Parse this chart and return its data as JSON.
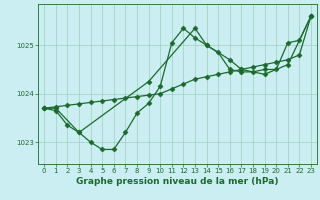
{
  "bg_color": "#cbeef3",
  "plot_bg_color": "#cbeef3",
  "grid_color": "#9ecfb8",
  "line_color": "#1a6b2a",
  "xlabel": "Graphe pression niveau de la mer (hPa)",
  "xlim": [
    -0.5,
    23.5
  ],
  "ylim": [
    1022.55,
    1025.85
  ],
  "yticks": [
    1023,
    1024,
    1025
  ],
  "xticks": [
    0,
    1,
    2,
    3,
    4,
    5,
    6,
    7,
    8,
    9,
    10,
    11,
    12,
    13,
    14,
    15,
    16,
    17,
    18,
    19,
    20,
    21,
    22,
    23
  ],
  "line1_x": [
    0,
    1,
    2,
    3,
    4,
    5,
    6,
    7,
    8,
    9,
    10,
    11,
    12,
    13,
    14,
    15,
    16,
    17,
    18,
    19,
    20,
    21,
    22,
    23
  ],
  "line1_y": [
    1023.7,
    1023.73,
    1023.76,
    1023.79,
    1023.82,
    1023.85,
    1023.88,
    1023.91,
    1023.94,
    1023.97,
    1024.0,
    1024.1,
    1024.2,
    1024.3,
    1024.35,
    1024.4,
    1024.45,
    1024.5,
    1024.55,
    1024.6,
    1024.65,
    1024.7,
    1024.8,
    1025.6
  ],
  "line2_x": [
    0,
    1,
    2,
    3,
    4,
    5,
    6,
    7,
    8,
    9,
    10,
    11,
    12,
    13,
    14,
    15,
    16,
    17,
    18,
    19,
    20,
    21,
    22,
    23
  ],
  "line2_y": [
    1023.7,
    1023.65,
    1023.35,
    1023.2,
    1023.0,
    1022.85,
    1022.85,
    1023.2,
    1023.6,
    1023.8,
    1024.15,
    1025.05,
    1025.35,
    1025.15,
    1025.0,
    1024.85,
    1024.5,
    1024.45,
    1024.45,
    1024.5,
    1024.5,
    1025.05,
    1025.1,
    1025.6
  ],
  "line3_x": [
    0,
    1,
    3,
    9,
    13,
    14,
    16,
    17,
    19,
    21,
    23
  ],
  "line3_y": [
    1023.7,
    1023.7,
    1023.2,
    1024.25,
    1025.35,
    1025.0,
    1024.7,
    1024.5,
    1024.4,
    1024.6,
    1025.6
  ],
  "marker": "D",
  "markersize": 2.5,
  "linewidth": 0.9,
  "tick_fontsize": 5.0,
  "label_fontsize": 6.5
}
